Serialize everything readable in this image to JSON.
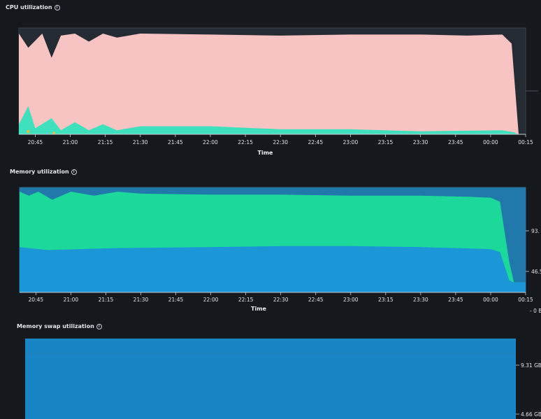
{
  "panels": {
    "cpu": {
      "title": "CPU utilization",
      "info_icon": "info-circle-icon"
    },
    "memory": {
      "title": "Memory utilization",
      "info_icon": "info-circle-icon"
    },
    "swap": {
      "title": "Memory swap utilization",
      "info_icon": "info-circle-icon"
    }
  },
  "chart_data": [
    {
      "type": "area",
      "title": "CPU utilization",
      "xlabel": "Time",
      "ylabel": "",
      "x_ticks": [
        "20:45",
        "21:00",
        "21:15",
        "21:30",
        "21:45",
        "22:00",
        "22:15",
        "22:30",
        "22:45",
        "23:00",
        "23:15",
        "23:30",
        "23:45",
        "00:00",
        "00:15"
      ],
      "x_range": [
        "20:38",
        "00:15"
      ],
      "y_range": [
        0,
        100
      ],
      "colors": {
        "total": "#f7c3c3",
        "user": "#3fe0bd",
        "accent": "#e3c23e"
      },
      "series": [
        {
          "key": "total",
          "x": [
            "20:38",
            "20:42",
            "20:48",
            "20:52",
            "20:56",
            "21:02",
            "21:08",
            "21:14",
            "21:20",
            "21:30",
            "22:00",
            "22:30",
            "23:00",
            "23:30",
            "23:50",
            "00:05",
            "00:09",
            "00:12",
            "00:15"
          ],
          "values": [
            100,
            86,
            100,
            76,
            98,
            100,
            92,
            100,
            96,
            100,
            99,
            98,
            99,
            99,
            98,
            99,
            90,
            0,
            0
          ]
        },
        {
          "key": "user",
          "x": [
            "20:38",
            "20:42",
            "20:45",
            "20:52",
            "20:56",
            "21:02",
            "21:08",
            "21:14",
            "21:20",
            "21:30",
            "22:00",
            "22:30",
            "23:00",
            "23:30",
            "00:05",
            "00:10",
            "00:12",
            "00:15"
          ],
          "values": [
            10,
            28,
            6,
            16,
            4,
            12,
            4,
            10,
            4,
            8,
            8,
            5,
            5,
            3,
            4,
            2,
            0,
            0
          ]
        }
      ]
    },
    {
      "type": "area",
      "title": "Memory utilization",
      "xlabel": "Time",
      "ylabel": "",
      "x_ticks": [
        "20:45",
        "21:00",
        "21:15",
        "21:30",
        "21:45",
        "22:00",
        "22:15",
        "22:30",
        "22:45",
        "23:00",
        "23:15",
        "23:30",
        "23:45",
        "00:00",
        "00:15"
      ],
      "x_range": [
        "20:38",
        "00:15"
      ],
      "y_ticks": [
        "0 B",
        "46.5",
        "93."
      ],
      "colors": {
        "used": "#1cd89a",
        "cached": "#1b96d6"
      },
      "series": [
        {
          "key": "used",
          "x": [
            "20:38",
            "20:42",
            "20:46",
            "20:52",
            "21:00",
            "21:10",
            "21:20",
            "21:30",
            "22:00",
            "22:30",
            "23:00",
            "23:30",
            "23:50",
            "00:00",
            "00:04",
            "00:08",
            "00:10",
            "00:15"
          ],
          "values": [
            100,
            96,
            100,
            92,
            100,
            96,
            100,
            98,
            97,
            97,
            96,
            96,
            95,
            94,
            90,
            30,
            10,
            10
          ]
        },
        {
          "key": "cached",
          "x": [
            "20:38",
            "20:50",
            "21:20",
            "22:00",
            "22:30",
            "23:00",
            "23:30",
            "00:00",
            "00:04",
            "00:08",
            "00:10",
            "00:15"
          ],
          "values": [
            45,
            42,
            44,
            45,
            46,
            46,
            45,
            43,
            40,
            12,
            10,
            10
          ]
        }
      ]
    },
    {
      "type": "area",
      "title": "Memory swap utilization",
      "xlabel": "",
      "ylabel": "",
      "y_ticks": [
        "9.31 GB",
        "4.66 GB"
      ],
      "colors": {
        "swap": "#1a85c4"
      },
      "series": [
        {
          "key": "swap",
          "values": [
            9.31,
            9.31
          ]
        }
      ]
    }
  ]
}
